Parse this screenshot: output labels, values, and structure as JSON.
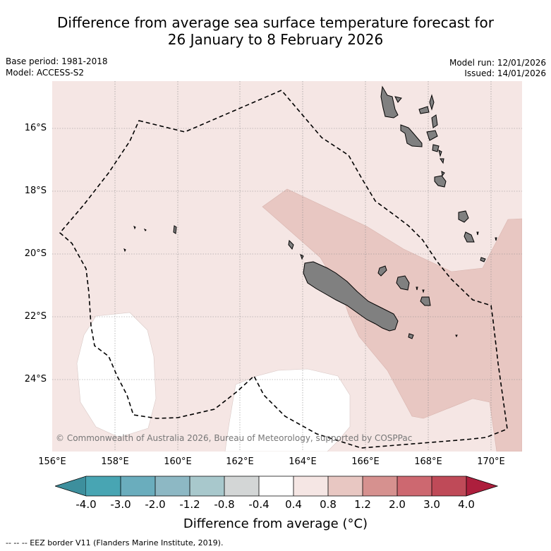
{
  "title": {
    "line1": "Difference from average sea surface temperature forecast for",
    "line2": "26 January to 8 February 2026"
  },
  "meta": {
    "base_period": "Base period: 1981-2018",
    "model": "Model: ACCESS-S2",
    "model_run": "Model run: 12/01/2026",
    "issued": "Issued: 14/01/2026"
  },
  "map": {
    "lat_labels": [
      "16°S",
      "18°S",
      "20°S",
      "22°S",
      "24°S"
    ],
    "lon_labels": [
      "156°E",
      "158°E",
      "160°E",
      "162°E",
      "164°E",
      "166°E",
      "168°E",
      "170°E"
    ],
    "copyright": "© Commonwealth of Australia 2026, Bureau of Meteorology, supported by COSPPac",
    "colors": {
      "light_pink": "#f5e6e4",
      "medium_pink": "#e8c7c2",
      "white": "#ffffff",
      "land": "#808080",
      "grid": "#888888"
    }
  },
  "colorbar": {
    "ticks": [
      "-4.0",
      "-3.0",
      "-2.0",
      "-1.2",
      "-0.8",
      "-0.4",
      "0.4",
      "0.8",
      "1.2",
      "2.0",
      "3.0",
      "4.0"
    ],
    "colors": [
      "#3d8f9d",
      "#48a5b3",
      "#6aadbd",
      "#8db8c4",
      "#a8c8cc",
      "#d3d6d6",
      "#ffffff",
      "#f5e6e4",
      "#e8c7c2",
      "#d6918f",
      "#cd6870",
      "#bf4a58",
      "#ad1f3d"
    ],
    "label": "Difference from average (°C)"
  },
  "legend": {
    "eez": "-- -- -- EEZ border V11 (Flanders Marine Institute, 2019)."
  }
}
